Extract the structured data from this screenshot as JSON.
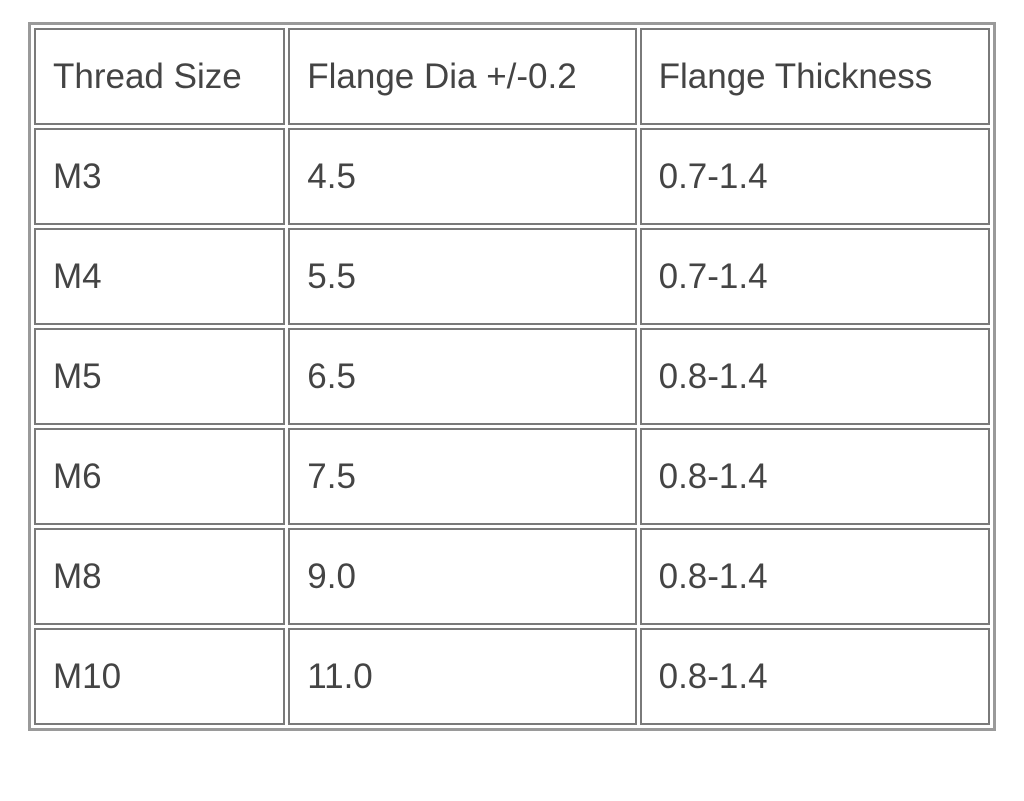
{
  "table": {
    "header": [
      "Thread Size",
      "Flange Dia +/-0.2",
      "Flange Thickness"
    ],
    "rows": [
      [
        "M3",
        "4.5",
        "0.7-1.4"
      ],
      [
        "M4",
        "5.5",
        "0.7-1.4"
      ],
      [
        "M5",
        "6.5",
        "0.8-1.4"
      ],
      [
        "M6",
        "7.5",
        "0.8-1.4"
      ],
      [
        "M8",
        "9.0",
        "0.8-1.4"
      ],
      [
        "M10",
        "11.0",
        "0.8-1.4"
      ]
    ]
  }
}
